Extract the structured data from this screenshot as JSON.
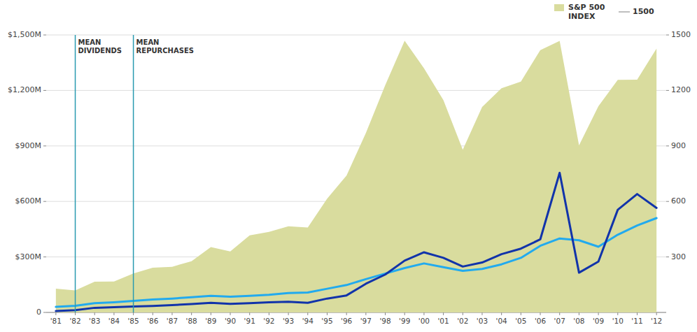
{
  "chart_data": {
    "type": "line",
    "categories": [
      "'81",
      "'82",
      "'83",
      "'84",
      "'85",
      "'86",
      "'87",
      "'88",
      "'89",
      "'90",
      "'91",
      "'92",
      "'93",
      "'94",
      "'95",
      "'96",
      "'97",
      "'98",
      "'99",
      "'00",
      "'01",
      "'02",
      "'03",
      "'04",
      "'05",
      "'06",
      "'07",
      "'08",
      "'09",
      "'10",
      "'11",
      "'12"
    ],
    "series": [
      {
        "name": "S&P 500\nINDEX",
        "type": "area",
        "axis": "y2",
        "color": "#d9dc9e",
        "values": [
          128,
          119,
          166,
          167,
          211,
          242,
          247,
          277,
          353,
          330,
          417,
          435,
          466,
          459,
          615,
          740,
          970,
          1229,
          1469,
          1320,
          1148,
          879,
          1111,
          1212,
          1248,
          1418,
          1468,
          903,
          1115,
          1257,
          1258,
          1426
        ]
      },
      {
        "type": "line",
        "color": "#22aaee",
        "values": [
          30,
          36,
          50,
          55,
          62,
          70,
          75,
          82,
          90,
          85,
          90,
          95,
          105,
          108,
          128,
          148,
          180,
          210,
          240,
          265,
          245,
          225,
          235,
          260,
          295,
          360,
          400,
          390,
          355,
          420,
          470,
          510
        ]
      },
      {
        "type": "line",
        "color": "#1133aa",
        "values": [
          8,
          12,
          25,
          28,
          32,
          35,
          40,
          45,
          52,
          46,
          50,
          55,
          58,
          52,
          75,
          92,
          155,
          205,
          280,
          325,
          295,
          248,
          270,
          315,
          345,
          395,
          755,
          215,
          275,
          555,
          640,
          565
        ]
      }
    ],
    "ylim": [
      0,
      1500
    ],
    "yticks": [
      0,
      {
        "value": 300,
        "label": "$300M"
      },
      {
        "value": 600,
        "label": "$600M"
      },
      {
        "value": 900,
        "label": "$900M"
      },
      {
        "value": 1200,
        "label": "$1,200M"
      },
      {
        "value": 1500,
        "label": "$1,500M"
      }
    ],
    "y2lim": [
      0,
      1500
    ],
    "y2ticks": [
      300,
      600,
      900,
      1200,
      1500
    ],
    "annotations": [
      {
        "text": "MEAN\nDIVIDENDS",
        "x": "'82"
      },
      {
        "text": "MEAN\nREPURCHASES",
        "x": "'85"
      },
      {
        "text": "1500"
      }
    ],
    "grid": true,
    "legend": "upper right"
  }
}
